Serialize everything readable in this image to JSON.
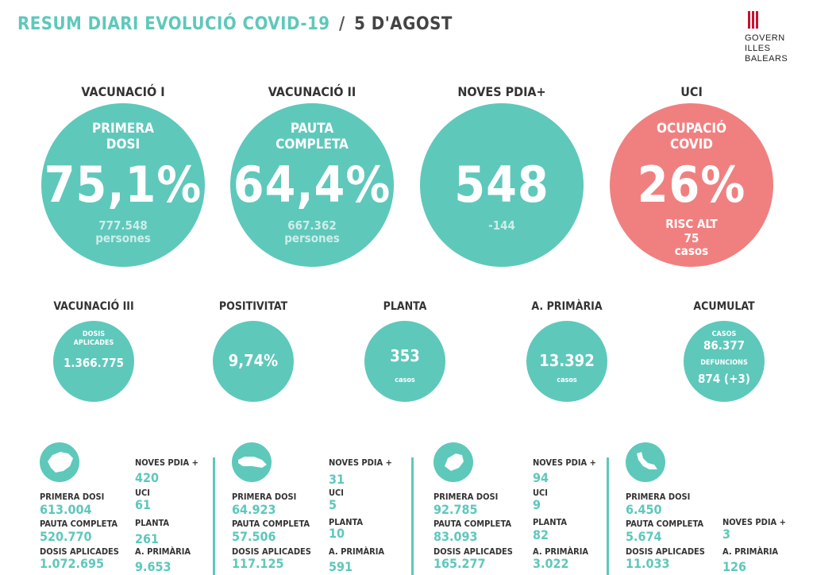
{
  "header": {
    "title": "RESUM DIARI EVOLUCIÓ COVID-19",
    "slash": "/",
    "date": "5 D'AGOST",
    "logo_lines": [
      "GOVERN",
      "ILLES",
      "BALEARS"
    ]
  },
  "big": [
    {
      "heading": "VACUNACIÓ I",
      "sub1": "PRIMERA",
      "sub2": "DOSI",
      "value": "75,1%",
      "foot1": "777.548",
      "foot2": "persones"
    },
    {
      "heading": "VACUNACIÓ II",
      "sub1": "PAUTA",
      "sub2": "COMPLETA",
      "value": "64,4%",
      "foot1": "667.362",
      "foot2": "persones"
    },
    {
      "heading": "NOVES PDIA+",
      "sub1": "",
      "sub2": "",
      "value": "548",
      "foot1": "-144",
      "foot2": ""
    },
    {
      "heading": "UCI",
      "sub1": "OCUPACIÓ",
      "sub2": "COVID",
      "value": "26%",
      "foot1": "RISC ALT",
      "foot2": "75",
      "foot3": "casos"
    }
  ],
  "small": {
    "vac3": {
      "heading": "VACUNACIÓ III",
      "cap1": "DOSIS",
      "cap2": "APLICADES",
      "value": "1.366.775"
    },
    "pos": {
      "heading": "POSITIVITAT",
      "value": "9,74%"
    },
    "planta": {
      "heading": "PLANTA",
      "value": "353",
      "cap": "casos"
    },
    "aprim": {
      "heading": "A. PRIMÀRIA",
      "value": "13.392",
      "cap": "casos"
    },
    "acum": {
      "heading": "ACUMULAT",
      "cap1": "CASOS",
      "value1": "86.377",
      "cap2": "DEFUNCIONS",
      "value2": "874 (+3)"
    }
  },
  "islands": [
    {
      "name": "mallorca",
      "primera_label": "PRIMERA DOSI",
      "primera": "613.004",
      "pauta_label": "PAUTA COMPLETA",
      "pauta": "520.770",
      "dosis_label": "DOSIS APLICADES",
      "dosis": "1.072.695",
      "pdia_label": "NOVES PDIA +",
      "pdia": "420",
      "uci_label": "UCI",
      "uci": "61",
      "planta_label": "PLANTA",
      "planta": "261",
      "aprim_label": "A. PRIMÀRIA",
      "aprim": "9.653"
    },
    {
      "name": "menorca",
      "primera_label": "PRIMERA DOSI",
      "primera": "64.923",
      "pauta_label": "PAUTA COMPLETA",
      "pauta": "57.506",
      "dosis_label": "DOSIS APLICADES",
      "dosis": "117.125",
      "pdia_label": "NOVES PDIA +",
      "pdia": "31",
      "uci_label": "UCI",
      "uci": "5",
      "planta_label": "PLANTA",
      "planta": "10",
      "aprim_label": "A. PRIMÀRIA",
      "aprim": "591"
    },
    {
      "name": "eivissa",
      "primera_label": "PRIMERA DOSI",
      "primera": "92.785",
      "pauta_label": "PAUTA COMPLETA",
      "pauta": "83.093",
      "dosis_label": "DOSIS APLICADES",
      "dosis": "165.277",
      "pdia_label": "NOVES PDIA +",
      "pdia": "94",
      "uci_label": "UCI",
      "uci": "9",
      "planta_label": "PLANTA",
      "planta": "82",
      "aprim_label": "A. PRIMÀRIA",
      "aprim": "3.022"
    },
    {
      "name": "formentera",
      "primera_label": "PRIMERA DOSI",
      "primera": "6.450",
      "pauta_label": "PAUTA COMPLETA",
      "pauta": "5.674",
      "dosis_label": "DOSIS APLICADES",
      "dosis": "11.033",
      "pdia_label": "NOVES PDIA +",
      "pdia": "3",
      "aprim_label": "A. PRIMÀRIA",
      "aprim": "126"
    }
  ]
}
